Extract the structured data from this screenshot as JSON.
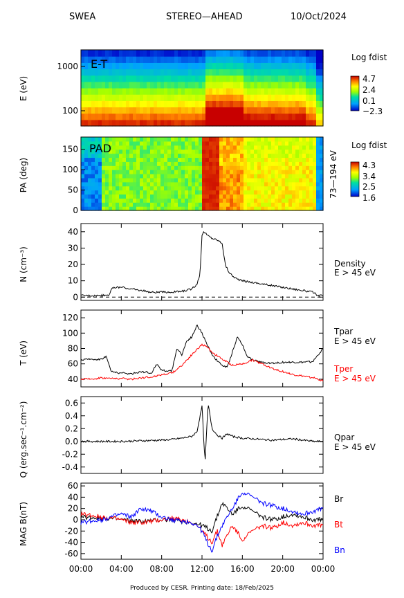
{
  "header": {
    "instrument": "SWEA",
    "spacecraft": "STEREO—AHEAD",
    "date": "10/Oct/2024"
  },
  "footer": "Produced by CESR.   Printing date: 18/Feb/2025",
  "time_ticks": [
    "00:00",
    "04:00",
    "08:00",
    "12:00",
    "16:00",
    "20:00",
    "00:00"
  ],
  "chart_data": [
    {
      "type": "heatmap",
      "panel": "E-T",
      "ylabel": "E (eV)",
      "yscale": "log",
      "yticks": [
        "1000",
        "100"
      ],
      "colorbar_title": "Log fdist",
      "colorbar_ticks": [
        "4.7",
        "2.4",
        "0.1",
        "−2.3"
      ],
      "zlim": [
        -2.3,
        4.7
      ],
      "energy_bands_eV": [
        60,
        80,
        110,
        150,
        210,
        290,
        400,
        560,
        780,
        1100,
        1500,
        2100
      ],
      "time_hours": [
        0,
        1,
        2,
        3,
        4,
        5,
        6,
        7,
        8,
        9,
        10,
        11,
        12,
        13,
        14,
        15,
        16,
        17,
        18,
        19,
        20,
        21,
        22,
        23,
        24
      ],
      "description_values": "log fdist highest at low energy, peak enhancement 12:00-16:00"
    },
    {
      "type": "heatmap",
      "panel": "PAD",
      "ylabel": "PA (deg)",
      "yticks": [
        "150",
        "100",
        "50",
        "0"
      ],
      "ylim": [
        0,
        180
      ],
      "energy_range_label": "73—194 eV",
      "colorbar_title": "Log fdist",
      "colorbar_ticks": [
        "4.3",
        "3.4",
        "2.5",
        "1.6"
      ],
      "zlim": [
        1.6,
        4.3
      ]
    },
    {
      "type": "line",
      "panel": "Density",
      "ylabel": "N (cm⁻³)",
      "ylim": [
        -2,
        45
      ],
      "yticks": [
        "40",
        "30",
        "20",
        "10",
        "0"
      ],
      "series": [
        {
          "name": "Density",
          "sublabel": "E > 45 eV",
          "color": "#000000",
          "x": [
            0,
            1,
            2,
            2.8,
            3,
            3.5,
            4,
            5,
            6,
            7,
            8,
            9,
            10,
            11,
            11.5,
            11.8,
            12,
            12.2,
            12.5,
            13,
            13.5,
            14,
            14.3,
            14.6,
            15,
            15.5,
            16,
            17,
            18,
            19,
            20,
            21,
            22,
            23,
            23.5,
            24
          ],
          "y": [
            1,
            1,
            1,
            1.5,
            5,
            6,
            6,
            5,
            4,
            3,
            3,
            3,
            3.5,
            5,
            8,
            14,
            38,
            40,
            38,
            36,
            35,
            33,
            20,
            16,
            13,
            11,
            10,
            9,
            8,
            7,
            6,
            5,
            4,
            3,
            1,
            1
          ]
        },
        {
          "name": "zero",
          "color": "#000000",
          "dashed": true,
          "x": [
            0,
            24
          ],
          "y": [
            0,
            0
          ]
        }
      ]
    },
    {
      "type": "line",
      "panel": "Temperature",
      "ylabel": "T (eV)",
      "ylim": [
        30,
        130
      ],
      "yticks": [
        "120",
        "100",
        "80",
        "60",
        "40"
      ],
      "series": [
        {
          "name": "Tpar",
          "sublabel": "E > 45 eV",
          "color": "#000000",
          "x": [
            0,
            1,
            2,
            2.5,
            3,
            4,
            5,
            6,
            7,
            7.5,
            8,
            9,
            9.5,
            10,
            10.5,
            11,
            11.5,
            12,
            12.5,
            13,
            13.5,
            14,
            14.5,
            15,
            15.5,
            16,
            16.5,
            17,
            18,
            19,
            20,
            21,
            22,
            23,
            24
          ],
          "y": [
            65,
            66,
            66,
            70,
            50,
            48,
            47,
            50,
            48,
            60,
            52,
            50,
            80,
            72,
            90,
            95,
            110,
            100,
            85,
            72,
            64,
            58,
            55,
            75,
            95,
            85,
            70,
            65,
            62,
            61,
            62,
            62,
            62,
            63,
            80
          ]
        },
        {
          "name": "Tper",
          "sublabel": "E > 45 eV",
          "color": "#ff0000",
          "x": [
            0,
            1,
            2,
            3,
            4,
            5,
            6,
            7,
            8,
            9,
            10,
            11,
            12,
            12.5,
            13,
            14,
            15,
            16,
            17,
            18,
            19,
            20,
            21,
            22,
            23,
            24
          ],
          "y": [
            40,
            40,
            42,
            41,
            41,
            40,
            42,
            43,
            46,
            48,
            58,
            72,
            85,
            82,
            75,
            66,
            58,
            60,
            65,
            60,
            54,
            50,
            46,
            44,
            42,
            38
          ]
        }
      ]
    },
    {
      "type": "line",
      "panel": "Heat flux",
      "ylabel": "Q (erg.sec⁻¹.cm⁻²)",
      "ylim": [
        -0.5,
        0.7
      ],
      "yticks": [
        "0.6",
        "0.4",
        "0.2",
        "0.0",
        "-0.2",
        "-0.4"
      ],
      "series": [
        {
          "name": "Qpar",
          "sublabel": "E > 45 eV",
          "color": "#000000",
          "x": [
            0,
            2,
            4,
            6,
            8,
            9,
            10,
            11,
            11.5,
            12,
            12.3,
            12.6,
            13,
            13.5,
            14,
            14.5,
            15,
            16,
            17,
            18,
            19,
            20,
            21,
            22,
            23,
            24
          ],
          "y": [
            0,
            0,
            0,
            0.01,
            0.02,
            0.03,
            0.05,
            0.08,
            0.15,
            0.55,
            -0.35,
            0.6,
            0.2,
            0.1,
            0.05,
            0.12,
            0.08,
            0.05,
            0.04,
            0.03,
            0.02,
            0.03,
            0.04,
            0.02,
            0,
            0
          ]
        }
      ]
    },
    {
      "type": "line",
      "panel": "Magnetic field",
      "ylabel": "MAG B(nT)",
      "ylim": [
        -70,
        65
      ],
      "yticks": [
        "60",
        "40",
        "20",
        "0",
        "-20",
        "-40",
        "-60"
      ],
      "series": [
        {
          "name": "Br",
          "color": "#000000",
          "x": [
            0,
            1,
            2,
            3,
            4,
            5,
            6,
            7,
            8,
            9,
            10,
            11,
            11.5,
            12,
            12.5,
            13,
            13.5,
            14,
            15,
            16,
            17,
            18,
            19,
            20,
            21,
            22,
            23,
            24
          ],
          "y": [
            5,
            4,
            3,
            2,
            0,
            -2,
            -3,
            -2,
            0,
            0,
            -3,
            -5,
            -8,
            -10,
            -15,
            -20,
            5,
            30,
            10,
            25,
            15,
            5,
            0,
            5,
            10,
            5,
            0,
            0
          ]
        },
        {
          "name": "Bt",
          "color": "#ff0000",
          "x": [
            0,
            1,
            2,
            3,
            4,
            5,
            6,
            7,
            8,
            9,
            10,
            11,
            11.5,
            12,
            12.5,
            13,
            13.5,
            14,
            15,
            16,
            17,
            18,
            19,
            20,
            21,
            22,
            23,
            24
          ],
          "y": [
            10,
            8,
            5,
            3,
            0,
            -5,
            -5,
            -3,
            0,
            3,
            0,
            -5,
            -10,
            -20,
            -30,
            -40,
            -20,
            -45,
            -10,
            -35,
            -20,
            -10,
            -15,
            -5,
            -10,
            -5,
            -10,
            -10
          ]
        },
        {
          "name": "Bn",
          "color": "#0000ff",
          "x": [
            0,
            1,
            2,
            3,
            4,
            5,
            6,
            7,
            8,
            9,
            10,
            11,
            11.5,
            12,
            12.5,
            13,
            13.5,
            14,
            15,
            16,
            17,
            18,
            19,
            20,
            21,
            22,
            23,
            24
          ],
          "y": [
            -5,
            -2,
            0,
            5,
            10,
            5,
            20,
            15,
            5,
            0,
            -2,
            -5,
            -10,
            -20,
            -40,
            -55,
            -30,
            -10,
            20,
            50,
            40,
            30,
            25,
            20,
            15,
            10,
            15,
            20
          ]
        }
      ]
    }
  ]
}
